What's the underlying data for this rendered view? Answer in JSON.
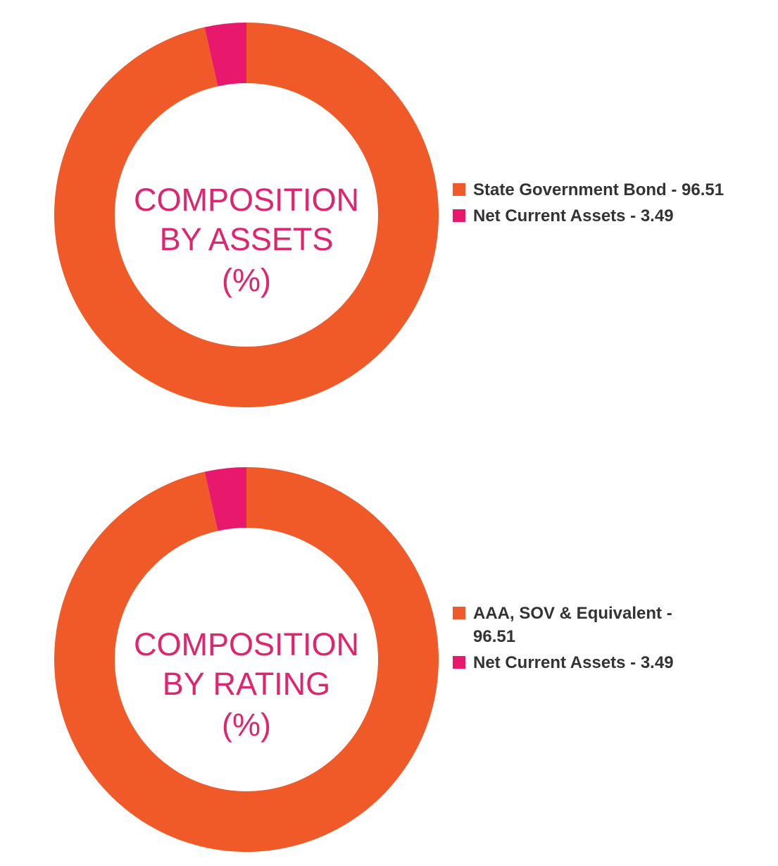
{
  "colors": {
    "orange": "#f05a28",
    "pink": "#e8186c",
    "title_pink": "#e0246e",
    "legend_text": "#333333"
  },
  "chart_data": [
    {
      "type": "pie",
      "title_lines": [
        "COMPOSITION",
        "BY ASSETS",
        "(%)"
      ],
      "categories": [
        "State Government Bond",
        "Net Current Assets"
      ],
      "values": [
        96.51,
        3.49
      ],
      "colors": [
        "#f05a28",
        "#e8186c"
      ],
      "legend_labels": [
        "State Government Bond - 96.51",
        "Net Current Assets - 3.49"
      ],
      "legend_position": "right"
    },
    {
      "type": "pie",
      "title_lines": [
        "COMPOSITION",
        "BY RATING",
        "(%)"
      ],
      "categories": [
        "AAA, SOV & Equivalent",
        "Net Current Assets"
      ],
      "values": [
        96.51,
        3.49
      ],
      "colors": [
        "#f05a28",
        "#e8186c"
      ],
      "legend_labels": [
        "AAA, SOV & Equivalent - 96.51",
        "Net Current Assets - 3.49"
      ],
      "legend_position": "right"
    }
  ]
}
